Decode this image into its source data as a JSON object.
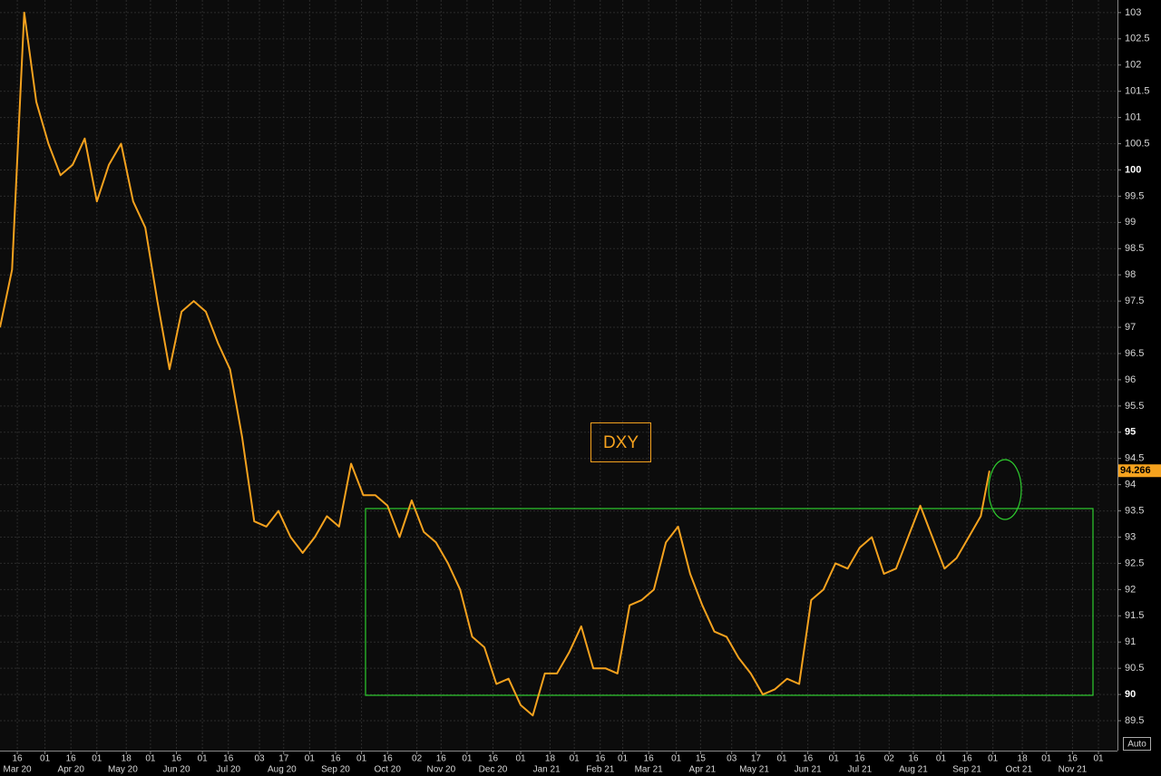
{
  "chart_data": {
    "type": "line",
    "annotation": "DXY",
    "color": "#f5a21e",
    "x": [
      "2020-03-06",
      "2020-03-13",
      "2020-03-20",
      "2020-03-27",
      "2020-04-03",
      "2020-04-10",
      "2020-04-17",
      "2020-04-24",
      "2020-05-01",
      "2020-05-08",
      "2020-05-15",
      "2020-05-22",
      "2020-05-29",
      "2020-06-05",
      "2020-06-12",
      "2020-06-19",
      "2020-06-26",
      "2020-07-03",
      "2020-07-10",
      "2020-07-17",
      "2020-07-24",
      "2020-07-31",
      "2020-08-07",
      "2020-08-14",
      "2020-08-21",
      "2020-08-28",
      "2020-09-04",
      "2020-09-11",
      "2020-09-18",
      "2020-09-25",
      "2020-10-02",
      "2020-10-09",
      "2020-10-16",
      "2020-10-23",
      "2020-10-30",
      "2020-11-06",
      "2020-11-13",
      "2020-11-20",
      "2020-11-27",
      "2020-12-04",
      "2020-12-11",
      "2020-12-18",
      "2020-12-25",
      "2021-01-01",
      "2021-01-08",
      "2021-01-15",
      "2021-01-22",
      "2021-01-29",
      "2021-02-05",
      "2021-02-12",
      "2021-02-19",
      "2021-02-26",
      "2021-03-05",
      "2021-03-12",
      "2021-03-19",
      "2021-03-26",
      "2021-04-02",
      "2021-04-09",
      "2021-04-16",
      "2021-04-23",
      "2021-04-30",
      "2021-05-07",
      "2021-05-14",
      "2021-05-21",
      "2021-05-28",
      "2021-06-04",
      "2021-06-11",
      "2021-06-18",
      "2021-06-25",
      "2021-07-02",
      "2021-07-09",
      "2021-07-16",
      "2021-07-23",
      "2021-07-30",
      "2021-08-06",
      "2021-08-13",
      "2021-08-20",
      "2021-08-27",
      "2021-09-03",
      "2021-09-10",
      "2021-09-17",
      "2021-09-24",
      "2021-09-29"
    ],
    "values": [
      97.0,
      98.1,
      103.0,
      101.3,
      100.5,
      99.9,
      100.1,
      100.6,
      99.4,
      100.1,
      100.5,
      99.4,
      98.9,
      97.5,
      96.2,
      97.3,
      97.5,
      97.3,
      96.7,
      96.2,
      94.9,
      93.3,
      93.2,
      93.5,
      93.0,
      92.7,
      93.0,
      93.4,
      93.2,
      94.4,
      93.8,
      93.8,
      93.6,
      93.0,
      93.7,
      93.1,
      92.9,
      92.5,
      92.0,
      91.1,
      90.9,
      90.2,
      90.3,
      89.8,
      89.6,
      90.4,
      90.4,
      90.8,
      91.3,
      90.5,
      90.5,
      90.4,
      91.7,
      91.8,
      92.0,
      92.9,
      93.2,
      92.3,
      91.7,
      91.2,
      91.1,
      90.7,
      90.4,
      90.0,
      90.1,
      90.3,
      90.2,
      91.8,
      92.0,
      92.5,
      92.4,
      92.8,
      93.0,
      92.3,
      92.4,
      93.0,
      93.6,
      93.0,
      92.4,
      92.6,
      93.0,
      93.4,
      94.266
    ],
    "last_value": 94.266,
    "xlim": [
      "2020-03-06",
      "2021-12-12"
    ],
    "ylim": [
      88.93,
      103.24
    ],
    "yticks": [
      89.5,
      90,
      90.5,
      91,
      91.5,
      92,
      92.5,
      93,
      93.5,
      94,
      94.5,
      95,
      95.5,
      96,
      96.5,
      97,
      97.5,
      98,
      98.5,
      99,
      99.5,
      100,
      100.5,
      101,
      101.5,
      102,
      102.5,
      103
    ],
    "xticks": [
      {
        "value": "2020-03-16",
        "label": "16"
      },
      {
        "value": "2020-04-01",
        "label": "01"
      },
      {
        "value": "2020-04-16",
        "label": "16"
      },
      {
        "value": "2020-05-01",
        "label": "01"
      },
      {
        "value": "2020-05-18",
        "label": "18"
      },
      {
        "value": "2020-06-01",
        "label": "01"
      },
      {
        "value": "2020-06-16",
        "label": "16"
      },
      {
        "value": "2020-07-01",
        "label": "01"
      },
      {
        "value": "2020-07-16",
        "label": "16"
      },
      {
        "value": "2020-08-03",
        "label": "03"
      },
      {
        "value": "2020-08-17",
        "label": "17"
      },
      {
        "value": "2020-09-01",
        "label": "01"
      },
      {
        "value": "2020-09-16",
        "label": "16"
      },
      {
        "value": "2020-10-01",
        "label": "01"
      },
      {
        "value": "2020-10-16",
        "label": "16"
      },
      {
        "value": "2020-11-02",
        "label": "02"
      },
      {
        "value": "2020-11-16",
        "label": "16"
      },
      {
        "value": "2020-12-01",
        "label": "01"
      },
      {
        "value": "2020-12-16",
        "label": "16"
      },
      {
        "value": "2021-01-01",
        "label": "01"
      },
      {
        "value": "2021-01-18",
        "label": "18"
      },
      {
        "value": "2021-02-01",
        "label": "01"
      },
      {
        "value": "2021-02-16",
        "label": "16"
      },
      {
        "value": "2021-03-01",
        "label": "01"
      },
      {
        "value": "2021-03-16",
        "label": "16"
      },
      {
        "value": "2021-04-01",
        "label": "01"
      },
      {
        "value": "2021-04-15",
        "label": "15"
      },
      {
        "value": "2021-05-03",
        "label": "03"
      },
      {
        "value": "2021-05-17",
        "label": "17"
      },
      {
        "value": "2021-06-01",
        "label": "01"
      },
      {
        "value": "2021-06-16",
        "label": "16"
      },
      {
        "value": "2021-07-01",
        "label": "01"
      },
      {
        "value": "2021-07-16",
        "label": "16"
      },
      {
        "value": "2021-08-02",
        "label": "02"
      },
      {
        "value": "2021-08-16",
        "label": "16"
      },
      {
        "value": "2021-09-01",
        "label": "01"
      },
      {
        "value": "2021-09-16",
        "label": "16"
      },
      {
        "value": "2021-10-01",
        "label": "01"
      },
      {
        "value": "2021-10-18",
        "label": "18"
      },
      {
        "value": "2021-11-01",
        "label": "01"
      },
      {
        "value": "2021-11-16",
        "label": "16"
      },
      {
        "value": "2021-12-01",
        "label": "01"
      }
    ],
    "month_labels": [
      {
        "value": "2020-03-16",
        "label": "Mar 20"
      },
      {
        "value": "2020-04-16",
        "label": "Apr 20"
      },
      {
        "value": "2020-05-16",
        "label": "May 20"
      },
      {
        "value": "2020-06-16",
        "label": "Jun 20"
      },
      {
        "value": "2020-07-16",
        "label": "Jul 20"
      },
      {
        "value": "2020-08-16",
        "label": "Aug 20"
      },
      {
        "value": "2020-09-16",
        "label": "Sep 20"
      },
      {
        "value": "2020-10-16",
        "label": "Oct 20"
      },
      {
        "value": "2020-11-16",
        "label": "Nov 20"
      },
      {
        "value": "2020-12-16",
        "label": "Dec 20"
      },
      {
        "value": "2021-01-16",
        "label": "Jan 21"
      },
      {
        "value": "2021-02-16",
        "label": "Feb 21"
      },
      {
        "value": "2021-03-16",
        "label": "Mar 21"
      },
      {
        "value": "2021-04-16",
        "label": "Apr 21"
      },
      {
        "value": "2021-05-16",
        "label": "May 21"
      },
      {
        "value": "2021-06-16",
        "label": "Jun 21"
      },
      {
        "value": "2021-07-16",
        "label": "Jul 21"
      },
      {
        "value": "2021-08-16",
        "label": "Aug 21"
      },
      {
        "value": "2021-09-16",
        "label": "Sep 21"
      },
      {
        "value": "2021-10-16",
        "label": "Oct 21"
      },
      {
        "value": "2021-11-16",
        "label": "Nov 21"
      }
    ],
    "grid": true,
    "scale_button": "Auto"
  }
}
